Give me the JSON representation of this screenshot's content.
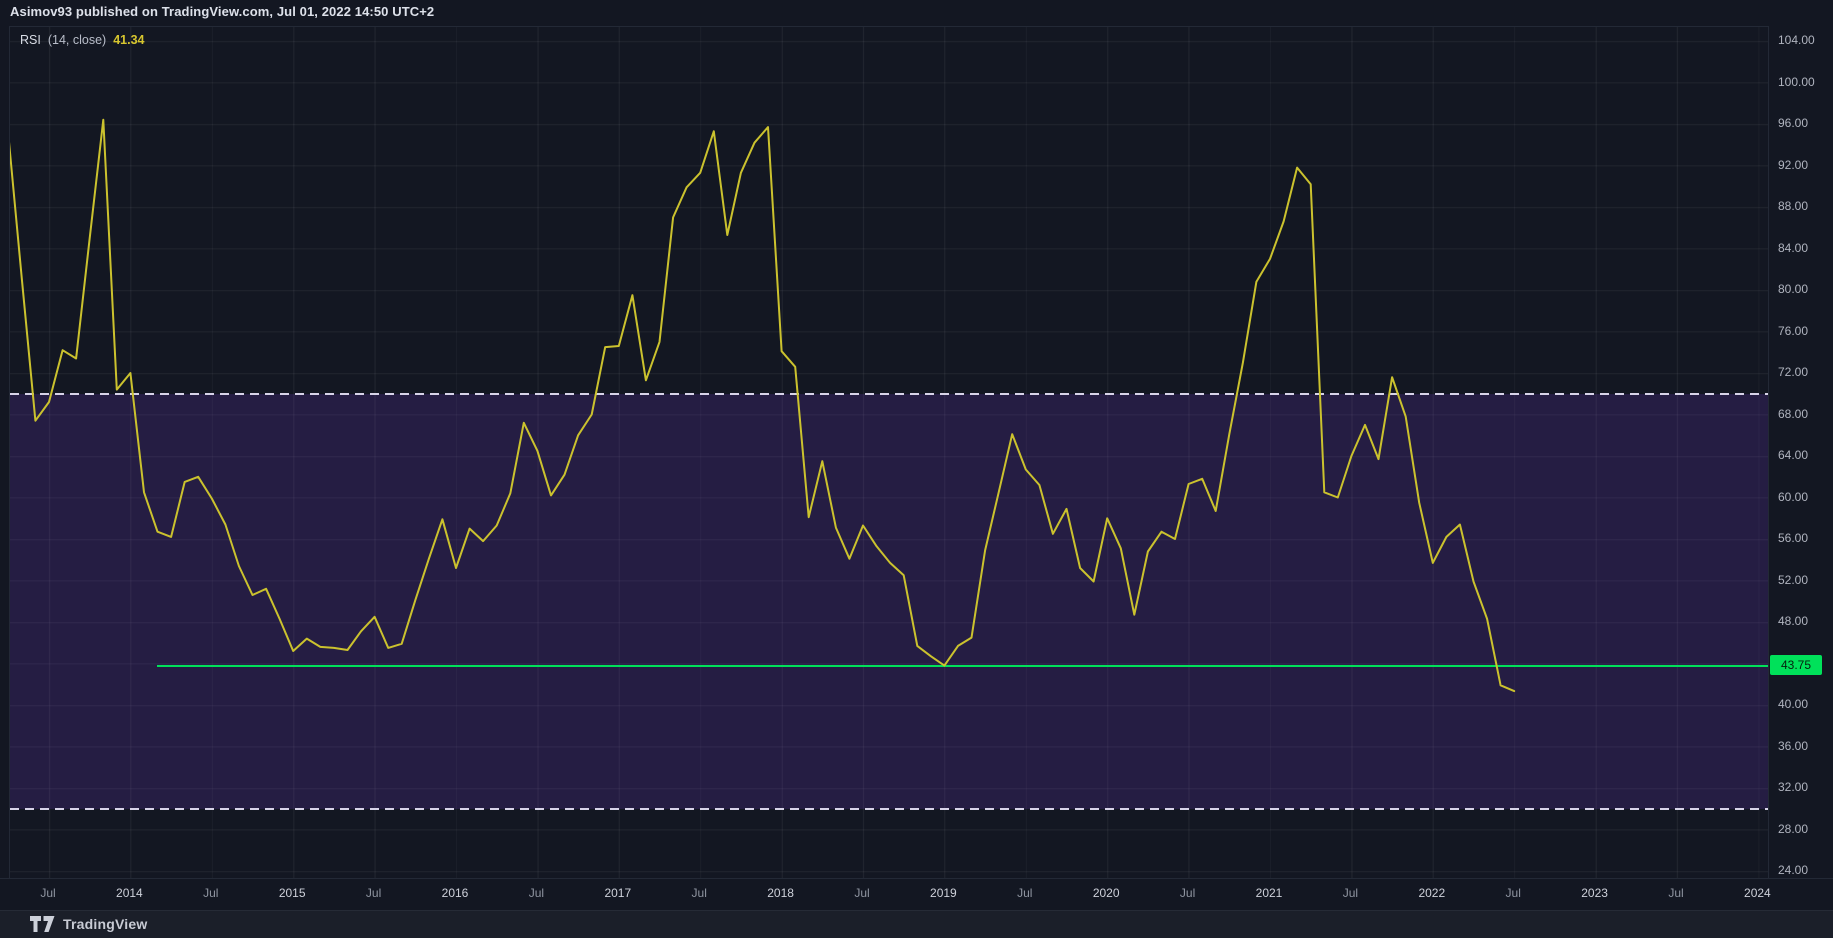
{
  "header": {
    "publish_line": "Asimov93 published on TradingView.com, Jul 01, 2022 14:50 UTC+2"
  },
  "legend": {
    "indicator": "RSI",
    "params": "(14, close)",
    "value": "41.34"
  },
  "y_axis": {
    "labels": [
      "104.00",
      "100.00",
      "96.00",
      "92.00",
      "88.00",
      "84.00",
      "80.00",
      "76.00",
      "72.00",
      "68.00",
      "64.00",
      "60.00",
      "56.00",
      "52.00",
      "48.00",
      "40.00",
      "36.00",
      "32.00",
      "28.00",
      "24.00"
    ]
  },
  "x_axis": {
    "ticks": [
      {
        "text": "Jul",
        "kind": "month"
      },
      {
        "text": "2014",
        "kind": "year"
      },
      {
        "text": "Jul",
        "kind": "month"
      },
      {
        "text": "2015",
        "kind": "year"
      },
      {
        "text": "Jul",
        "kind": "month"
      },
      {
        "text": "2016",
        "kind": "year"
      },
      {
        "text": "Jul",
        "kind": "month"
      },
      {
        "text": "2017",
        "kind": "year"
      },
      {
        "text": "Jul",
        "kind": "month"
      },
      {
        "text": "2018",
        "kind": "year"
      },
      {
        "text": "Jul",
        "kind": "month"
      },
      {
        "text": "2019",
        "kind": "year"
      },
      {
        "text": "Jul",
        "kind": "month"
      },
      {
        "text": "2020",
        "kind": "year"
      },
      {
        "text": "Jul",
        "kind": "month"
      },
      {
        "text": "2021",
        "kind": "year"
      },
      {
        "text": "Jul",
        "kind": "month"
      },
      {
        "text": "2022",
        "kind": "year"
      },
      {
        "text": "Jul",
        "kind": "month"
      },
      {
        "text": "2023",
        "kind": "year"
      },
      {
        "text": "Jul",
        "kind": "month"
      },
      {
        "text": "2024",
        "kind": "year"
      }
    ]
  },
  "support_label": "43.75",
  "footer": {
    "brand": "TradingView"
  },
  "colors": {
    "background": "#131722",
    "band_purple": "rgba(105,56,185,0.22)",
    "rsi_line": "#cbc22e",
    "value_yellow": "#d7c62f",
    "support_green": "#00e15a",
    "dashed_level": "#d7d3e8"
  },
  "chart_data": {
    "type": "line",
    "title": "RSI (14, close)",
    "series_name": "RSI (14)",
    "frequency": "monthly",
    "x_start": "2013-03",
    "x_end": "2022-07",
    "values": [
      97.0,
      95.0,
      81.0,
      67.4,
      69.2,
      74.2,
      73.4,
      85.0,
      96.4,
      70.4,
      72.0,
      60.5,
      56.7,
      56.2,
      61.5,
      62.0,
      59.9,
      57.4,
      53.4,
      50.6,
      51.2,
      48.3,
      45.2,
      46.4,
      45.6,
      45.5,
      45.3,
      47.1,
      48.5,
      45.5,
      45.9,
      50.1,
      54.1,
      57.9,
      53.2,
      57.0,
      55.8,
      57.3,
      60.4,
      67.2,
      64.5,
      60.2,
      62.2,
      66.0,
      68.0,
      74.5,
      74.6,
      79.5,
      71.3,
      75.0,
      87.0,
      89.9,
      91.3,
      95.3,
      85.3,
      91.3,
      94.2,
      95.7,
      74.1,
      72.6,
      58.1,
      63.5,
      57.1,
      54.1,
      57.3,
      55.3,
      53.7,
      52.5,
      45.7,
      44.7,
      43.8,
      45.7,
      46.5,
      54.9,
      60.5,
      66.1,
      62.7,
      61.2,
      56.5,
      58.9,
      53.2,
      51.9,
      58.0,
      55.1,
      48.7,
      54.8,
      56.7,
      56.0,
      61.3,
      61.8,
      58.7,
      66.1,
      73.0,
      80.8,
      83.0,
      86.6,
      91.8,
      90.2,
      60.5,
      60.0,
      64.0,
      67.0,
      63.7,
      71.6,
      67.8,
      59.5,
      53.7,
      56.2,
      57.4,
      51.9,
      48.3,
      41.9,
      41.34
    ],
    "last_value": 41.34,
    "levels": {
      "overbought": 70,
      "oversold": 30,
      "support_ray": 43.75
    },
    "support_ray_starts": "2015-03",
    "ylabel": "RSI",
    "visible_y_range": [
      24,
      104
    ],
    "x_tick_labels": [
      "Jul",
      "2014",
      "Jul",
      "2015",
      "Jul",
      "2016",
      "Jul",
      "2017",
      "Jul",
      "2018",
      "Jul",
      "2019",
      "Jul",
      "2020",
      "Jul",
      "2021",
      "Jul",
      "2022",
      "Jul",
      "2023",
      "Jul",
      "2024"
    ],
    "grid": true,
    "legend_position": "top-left"
  }
}
